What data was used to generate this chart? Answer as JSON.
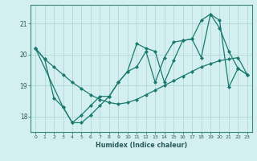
{
  "xlabel": "Humidex (Indice chaleur)",
  "bg_color": "#d4efef",
  "grid_color": "#b0d8d8",
  "line_color": "#1a7a6e",
  "xlim": [
    -0.5,
    23.5
  ],
  "ylim": [
    17.5,
    21.6
  ],
  "yticks": [
    18,
    19,
    20,
    21
  ],
  "xticks": [
    0,
    1,
    2,
    3,
    4,
    5,
    6,
    7,
    8,
    9,
    10,
    11,
    12,
    13,
    14,
    15,
    16,
    17,
    18,
    19,
    20,
    21,
    22,
    23
  ],
  "series1_x": [
    0,
    1,
    2,
    3,
    4,
    5,
    6,
    7,
    8,
    9,
    10,
    11,
    12,
    13,
    14,
    15,
    16,
    17,
    18,
    19,
    20,
    21,
    22,
    23
  ],
  "series1_y": [
    20.2,
    19.85,
    19.6,
    19.35,
    19.1,
    18.9,
    18.7,
    18.55,
    18.45,
    18.4,
    18.45,
    18.55,
    18.7,
    18.85,
    19.0,
    19.15,
    19.3,
    19.45,
    19.6,
    19.7,
    19.8,
    19.85,
    19.9,
    19.35
  ],
  "series2_x": [
    0,
    1,
    2,
    3,
    4,
    5,
    6,
    7,
    8,
    9,
    10,
    11,
    12,
    13,
    14,
    15,
    16,
    17,
    18,
    19,
    20,
    21,
    22,
    23
  ],
  "series2_y": [
    20.2,
    19.85,
    18.6,
    18.3,
    17.8,
    17.8,
    18.05,
    18.35,
    18.65,
    19.1,
    19.45,
    20.35,
    20.2,
    20.1,
    19.1,
    19.8,
    20.45,
    20.5,
    21.1,
    21.3,
    20.85,
    20.1,
    19.55,
    19.35
  ],
  "series3_x": [
    0,
    3,
    4,
    5,
    6,
    7,
    8,
    9,
    10,
    11,
    12,
    13,
    14,
    15,
    16,
    17,
    18,
    19,
    20,
    21,
    22,
    23
  ],
  "series3_y": [
    20.2,
    18.3,
    17.8,
    18.05,
    18.35,
    18.65,
    18.65,
    19.1,
    19.45,
    19.6,
    20.1,
    19.1,
    19.9,
    20.4,
    20.45,
    20.5,
    19.9,
    21.3,
    21.1,
    18.95,
    19.55,
    19.35
  ]
}
